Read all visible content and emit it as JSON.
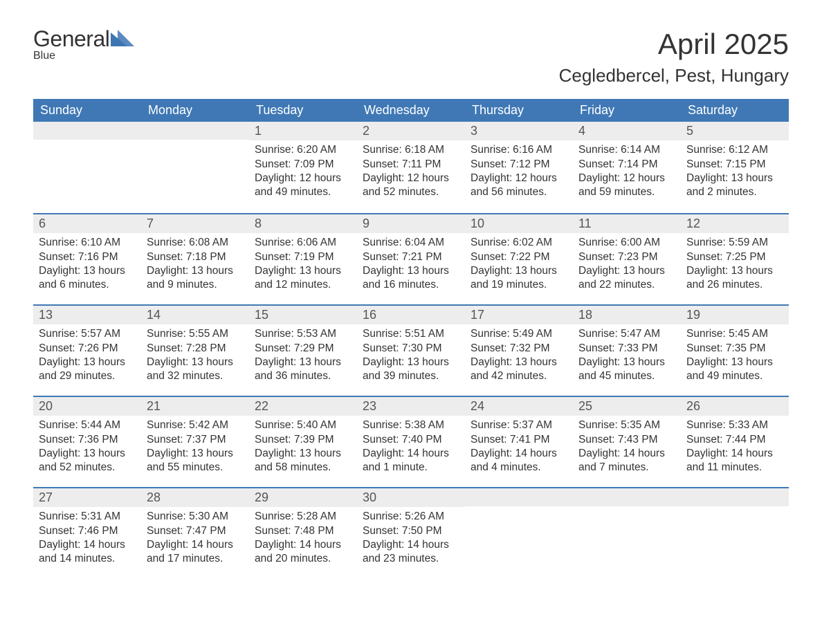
{
  "logo": {
    "word1": "General",
    "word2": "Blue",
    "accent_color": "#3d76b3"
  },
  "title": "April 2025",
  "location": "Cegledbercel, Pest, Hungary",
  "colors": {
    "header_bg": "#3f78b5",
    "header_text": "#ffffff",
    "daynum_bg": "#ededed",
    "daynum_text": "#555555",
    "body_text": "#333333",
    "week_divider": "#3f78b5",
    "page_bg": "#ffffff"
  },
  "typography": {
    "title_fontsize": 42,
    "location_fontsize": 26,
    "weekday_fontsize": 18,
    "daynum_fontsize": 18,
    "body_fontsize": 15.5,
    "font_family": "Segoe UI"
  },
  "weekdays": [
    "Sunday",
    "Monday",
    "Tuesday",
    "Wednesday",
    "Thursday",
    "Friday",
    "Saturday"
  ],
  "weeks": [
    [
      {
        "num": "",
        "lines": []
      },
      {
        "num": "",
        "lines": []
      },
      {
        "num": "1",
        "lines": [
          "Sunrise: 6:20 AM",
          "Sunset: 7:09 PM",
          "Daylight: 12 hours and 49 minutes."
        ]
      },
      {
        "num": "2",
        "lines": [
          "Sunrise: 6:18 AM",
          "Sunset: 7:11 PM",
          "Daylight: 12 hours and 52 minutes."
        ]
      },
      {
        "num": "3",
        "lines": [
          "Sunrise: 6:16 AM",
          "Sunset: 7:12 PM",
          "Daylight: 12 hours and 56 minutes."
        ]
      },
      {
        "num": "4",
        "lines": [
          "Sunrise: 6:14 AM",
          "Sunset: 7:14 PM",
          "Daylight: 12 hours and 59 minutes."
        ]
      },
      {
        "num": "5",
        "lines": [
          "Sunrise: 6:12 AM",
          "Sunset: 7:15 PM",
          "Daylight: 13 hours and 2 minutes."
        ]
      }
    ],
    [
      {
        "num": "6",
        "lines": [
          "Sunrise: 6:10 AM",
          "Sunset: 7:16 PM",
          "Daylight: 13 hours and 6 minutes."
        ]
      },
      {
        "num": "7",
        "lines": [
          "Sunrise: 6:08 AM",
          "Sunset: 7:18 PM",
          "Daylight: 13 hours and 9 minutes."
        ]
      },
      {
        "num": "8",
        "lines": [
          "Sunrise: 6:06 AM",
          "Sunset: 7:19 PM",
          "Daylight: 13 hours and 12 minutes."
        ]
      },
      {
        "num": "9",
        "lines": [
          "Sunrise: 6:04 AM",
          "Sunset: 7:21 PM",
          "Daylight: 13 hours and 16 minutes."
        ]
      },
      {
        "num": "10",
        "lines": [
          "Sunrise: 6:02 AM",
          "Sunset: 7:22 PM",
          "Daylight: 13 hours and 19 minutes."
        ]
      },
      {
        "num": "11",
        "lines": [
          "Sunrise: 6:00 AM",
          "Sunset: 7:23 PM",
          "Daylight: 13 hours and 22 minutes."
        ]
      },
      {
        "num": "12",
        "lines": [
          "Sunrise: 5:59 AM",
          "Sunset: 7:25 PM",
          "Daylight: 13 hours and 26 minutes."
        ]
      }
    ],
    [
      {
        "num": "13",
        "lines": [
          "Sunrise: 5:57 AM",
          "Sunset: 7:26 PM",
          "Daylight: 13 hours and 29 minutes."
        ]
      },
      {
        "num": "14",
        "lines": [
          "Sunrise: 5:55 AM",
          "Sunset: 7:28 PM",
          "Daylight: 13 hours and 32 minutes."
        ]
      },
      {
        "num": "15",
        "lines": [
          "Sunrise: 5:53 AM",
          "Sunset: 7:29 PM",
          "Daylight: 13 hours and 36 minutes."
        ]
      },
      {
        "num": "16",
        "lines": [
          "Sunrise: 5:51 AM",
          "Sunset: 7:30 PM",
          "Daylight: 13 hours and 39 minutes."
        ]
      },
      {
        "num": "17",
        "lines": [
          "Sunrise: 5:49 AM",
          "Sunset: 7:32 PM",
          "Daylight: 13 hours and 42 minutes."
        ]
      },
      {
        "num": "18",
        "lines": [
          "Sunrise: 5:47 AM",
          "Sunset: 7:33 PM",
          "Daylight: 13 hours and 45 minutes."
        ]
      },
      {
        "num": "19",
        "lines": [
          "Sunrise: 5:45 AM",
          "Sunset: 7:35 PM",
          "Daylight: 13 hours and 49 minutes."
        ]
      }
    ],
    [
      {
        "num": "20",
        "lines": [
          "Sunrise: 5:44 AM",
          "Sunset: 7:36 PM",
          "Daylight: 13 hours and 52 minutes."
        ]
      },
      {
        "num": "21",
        "lines": [
          "Sunrise: 5:42 AM",
          "Sunset: 7:37 PM",
          "Daylight: 13 hours and 55 minutes."
        ]
      },
      {
        "num": "22",
        "lines": [
          "Sunrise: 5:40 AM",
          "Sunset: 7:39 PM",
          "Daylight: 13 hours and 58 minutes."
        ]
      },
      {
        "num": "23",
        "lines": [
          "Sunrise: 5:38 AM",
          "Sunset: 7:40 PM",
          "Daylight: 14 hours and 1 minute."
        ]
      },
      {
        "num": "24",
        "lines": [
          "Sunrise: 5:37 AM",
          "Sunset: 7:41 PM",
          "Daylight: 14 hours and 4 minutes."
        ]
      },
      {
        "num": "25",
        "lines": [
          "Sunrise: 5:35 AM",
          "Sunset: 7:43 PM",
          "Daylight: 14 hours and 7 minutes."
        ]
      },
      {
        "num": "26",
        "lines": [
          "Sunrise: 5:33 AM",
          "Sunset: 7:44 PM",
          "Daylight: 14 hours and 11 minutes."
        ]
      }
    ],
    [
      {
        "num": "27",
        "lines": [
          "Sunrise: 5:31 AM",
          "Sunset: 7:46 PM",
          "Daylight: 14 hours and 14 minutes."
        ]
      },
      {
        "num": "28",
        "lines": [
          "Sunrise: 5:30 AM",
          "Sunset: 7:47 PM",
          "Daylight: 14 hours and 17 minutes."
        ]
      },
      {
        "num": "29",
        "lines": [
          "Sunrise: 5:28 AM",
          "Sunset: 7:48 PM",
          "Daylight: 14 hours and 20 minutes."
        ]
      },
      {
        "num": "30",
        "lines": [
          "Sunrise: 5:26 AM",
          "Sunset: 7:50 PM",
          "Daylight: 14 hours and 23 minutes."
        ]
      },
      {
        "num": "",
        "lines": []
      },
      {
        "num": "",
        "lines": []
      },
      {
        "num": "",
        "lines": []
      }
    ]
  ]
}
